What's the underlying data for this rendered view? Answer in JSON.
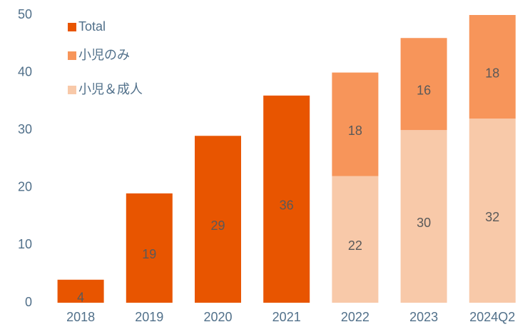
{
  "chart_data": {
    "type": "stacked_bar",
    "categories": [
      "2018",
      "2019",
      "2020",
      "2021",
      "2022",
      "2023",
      "2024Q2"
    ],
    "series": [
      {
        "name": "Total",
        "color": "#e85500",
        "values": [
          4,
          19,
          29,
          36,
          null,
          null,
          null
        ]
      },
      {
        "name": "小児のみ",
        "color": "#f7955a",
        "values": [
          null,
          null,
          null,
          null,
          18,
          16,
          18
        ]
      },
      {
        "name": "小児＆成人",
        "color": "#f8c9a9",
        "values": [
          null,
          null,
          null,
          null,
          22,
          30,
          32
        ]
      }
    ],
    "ylim": [
      0,
      50
    ],
    "yticks": [
      0,
      10,
      20,
      30,
      40,
      50
    ],
    "grid": false,
    "legend": "top-left"
  }
}
